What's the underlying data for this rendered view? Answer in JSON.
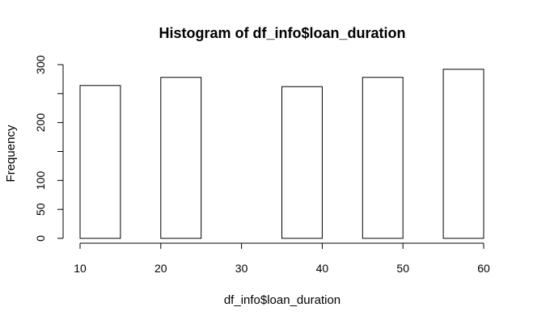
{
  "chart_data": {
    "type": "bar",
    "title": "Histogram of df_info$loan_duration",
    "xlabel": "df_info$loan_duration",
    "ylabel": "Frequency",
    "bins": [
      {
        "x0": 10,
        "x1": 15,
        "count": 264
      },
      {
        "x0": 15,
        "x1": 20,
        "count": 0
      },
      {
        "x0": 20,
        "x1": 25,
        "count": 278
      },
      {
        "x0": 25,
        "x1": 30,
        "count": 0
      },
      {
        "x0": 30,
        "x1": 35,
        "count": 0
      },
      {
        "x0": 35,
        "x1": 40,
        "count": 262
      },
      {
        "x0": 40,
        "x1": 45,
        "count": 0
      },
      {
        "x0": 45,
        "x1": 50,
        "count": 278
      },
      {
        "x0": 50,
        "x1": 55,
        "count": 0
      },
      {
        "x0": 55,
        "x1": 60,
        "count": 292
      }
    ],
    "xlim": [
      10,
      60
    ],
    "ylim": [
      0,
      300
    ],
    "x_ticks": [
      10,
      20,
      30,
      40,
      50,
      60
    ],
    "y_ticks": [
      0,
      50,
      100,
      150,
      200,
      250,
      300
    ],
    "y_tick_labels": [
      "0",
      "50",
      "100",
      "",
      "200",
      "",
      "300"
    ],
    "grid": false,
    "legend": "none"
  }
}
